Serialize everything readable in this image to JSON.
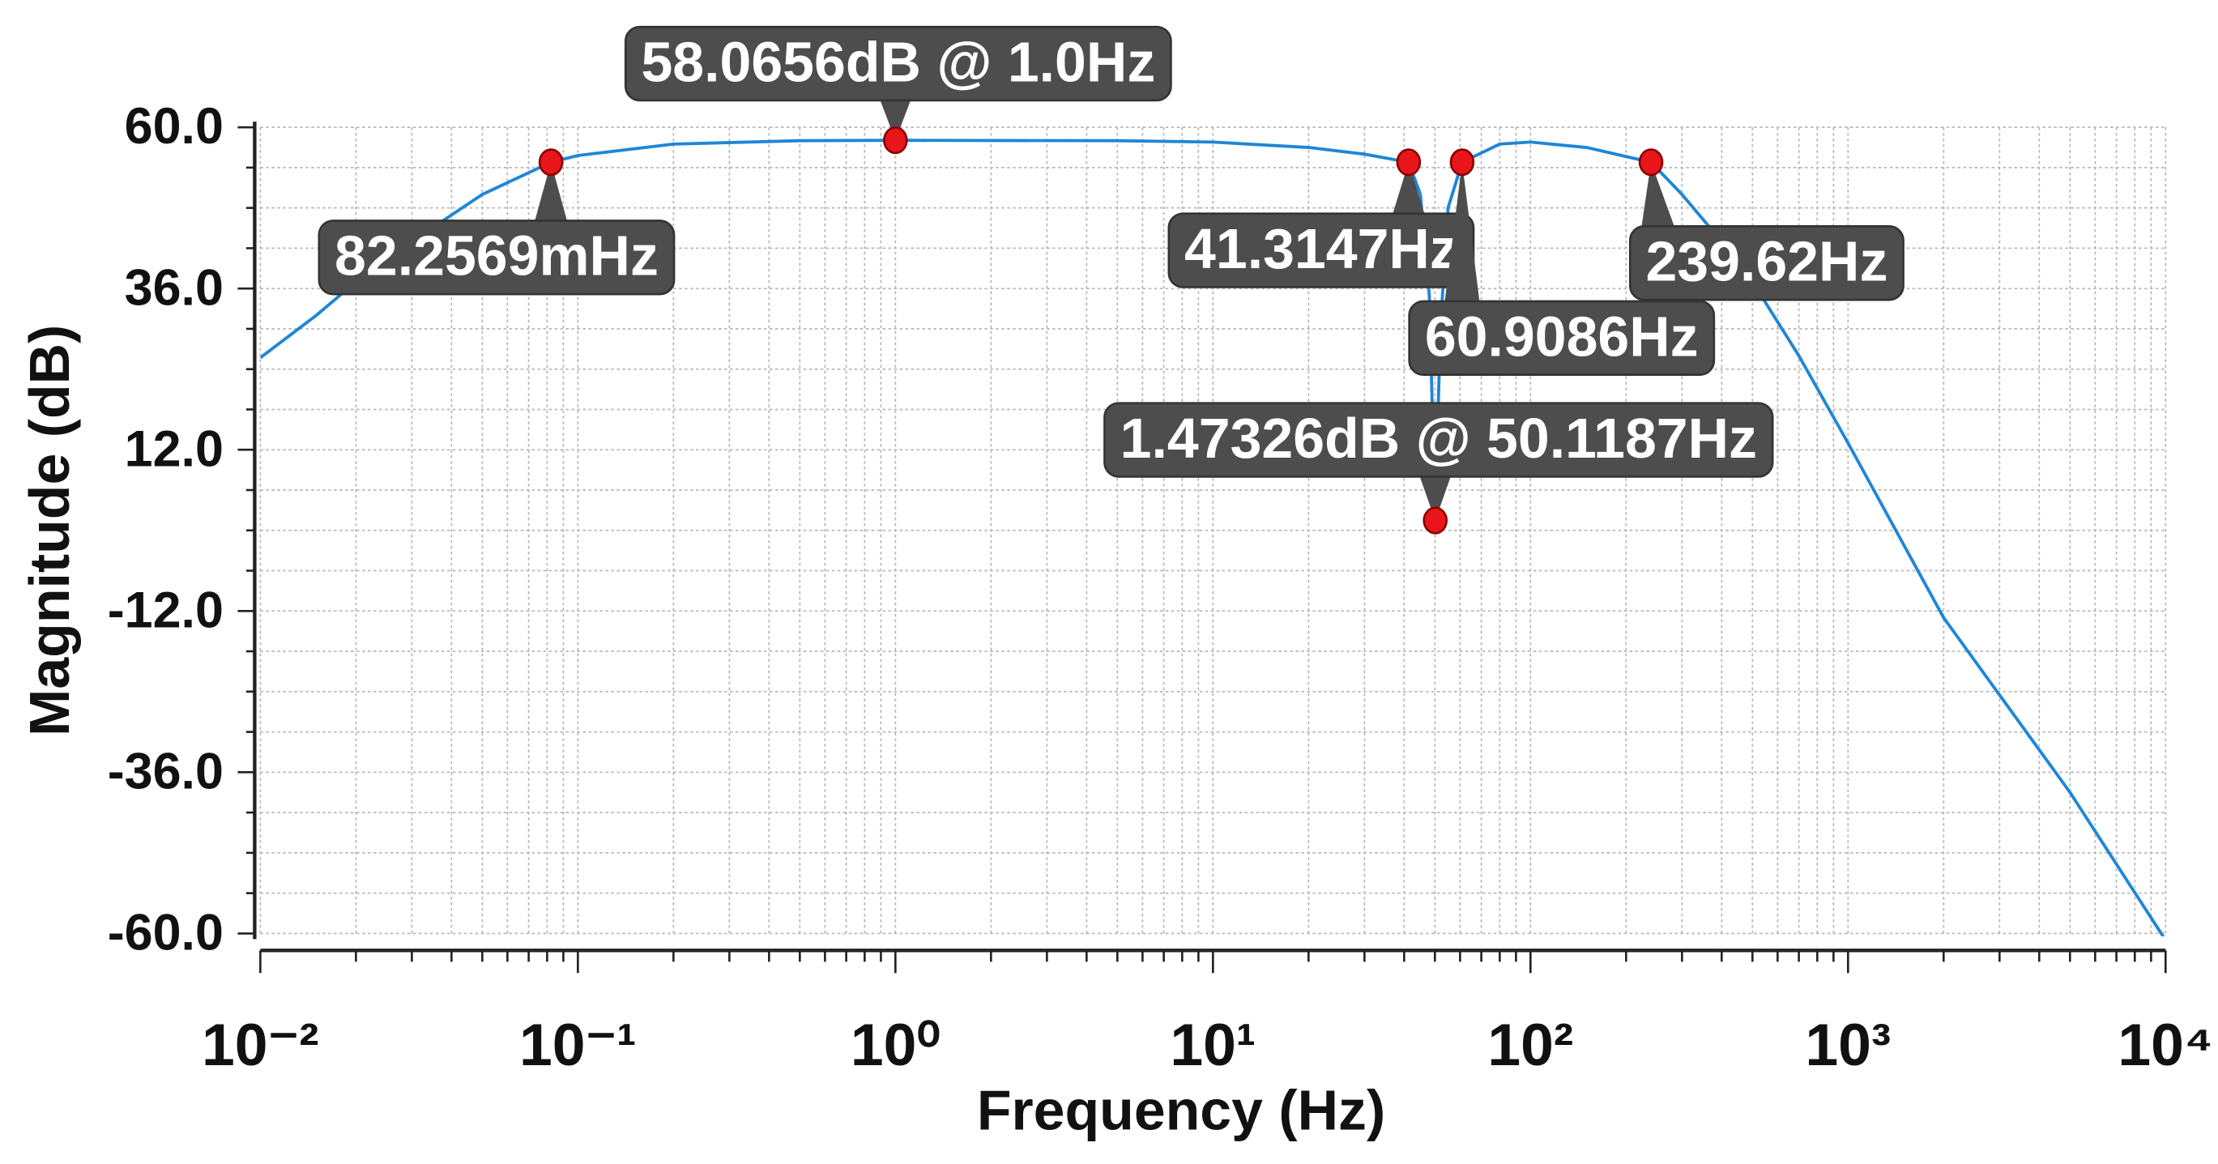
{
  "chart_data": {
    "type": "line",
    "xlabel": "Frequency (Hz)",
    "ylabel": "Magnitude (dB)",
    "xscale": "log",
    "grid": true,
    "xlim": [
      0.01,
      10000
    ],
    "xticks": [
      {
        "value": 0.01,
        "label": "10⁻²"
      },
      {
        "value": 0.1,
        "label": "10⁻¹"
      },
      {
        "value": 1,
        "label": "10⁰"
      },
      {
        "value": 10,
        "label": "10¹"
      },
      {
        "value": 100,
        "label": "10²"
      },
      {
        "value": 1000,
        "label": "10³"
      },
      {
        "value": 10000,
        "label": "10⁴"
      }
    ],
    "ylim": [
      -60,
      60
    ],
    "yticks": [
      {
        "value": 60,
        "label": "60.0"
      },
      {
        "value": 36,
        "label": "36.0"
      },
      {
        "value": 12,
        "label": "12.0"
      },
      {
        "value": -12,
        "label": "-12.0"
      },
      {
        "value": -36,
        "label": "-36.0"
      },
      {
        "value": -60,
        "label": "-60.0"
      }
    ],
    "yminorticks": [
      54,
      48,
      42,
      30,
      24,
      18,
      6,
      0,
      -6,
      -18,
      -24,
      -30,
      -42,
      -48,
      -54
    ],
    "x": [
      0.01,
      0.015,
      0.02,
      0.03,
      0.05,
      0.0822569,
      0.1,
      0.2,
      0.5,
      1,
      5,
      10,
      20,
      30,
      41.3147,
      45,
      48,
      50.1187,
      52,
      55,
      60.9086,
      80,
      100,
      150,
      239.62,
      300,
      400,
      500,
      700,
      1000,
      2000,
      5000,
      10000
    ],
    "series": [
      {
        "color": "#1f86d6",
        "values": [
          25.7,
          32,
          37,
          43,
          50,
          54.8,
          55.8,
          57.5,
          58,
          58.0656,
          58,
          57.8,
          57,
          56,
          54.8,
          50,
          35,
          1.47326,
          30,
          48,
          54.8,
          57.5,
          57.8,
          57,
          54.8,
          50,
          43,
          37,
          26,
          13,
          -13,
          -39,
          -61
        ]
      }
    ],
    "annotations": [
      {
        "text": "58.0656dB @ 1.0Hz",
        "x": 1,
        "y": 58.0656
      },
      {
        "text": "82.2569mHz",
        "x": 0.0822569,
        "y": 54.8
      },
      {
        "text": "41.3147Hz",
        "x": 41.3147,
        "y": 54.8
      },
      {
        "text": "60.9086Hz",
        "x": 60.9086,
        "y": 54.8
      },
      {
        "text": "239.62Hz",
        "x": 239.62,
        "y": 54.8
      },
      {
        "text": "1.47326dB @ 50.1187Hz",
        "x": 50.1187,
        "y": 1.47326
      }
    ],
    "marker_color": "#e8161b"
  }
}
